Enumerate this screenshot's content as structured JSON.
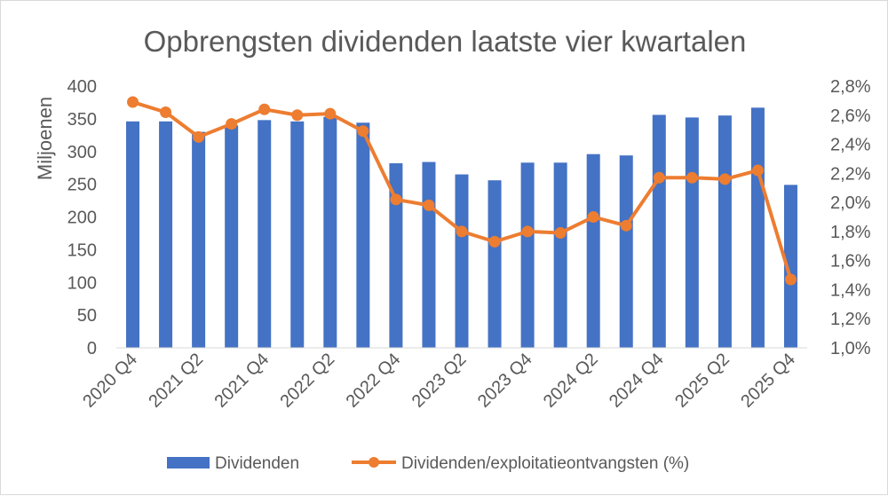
{
  "chart_data": {
    "type": "bar+line",
    "title": "Opbrengsten dividenden laatste vier kwartalen",
    "ylabel_left": "Miljoenen",
    "ylabel_right": "",
    "xlabel": "",
    "ylim_left": [
      0,
      400
    ],
    "ylim_right": [
      1.0,
      2.8
    ],
    "left_ticks": [
      "0",
      "50",
      "100",
      "150",
      "200",
      "250",
      "300",
      "350",
      "400"
    ],
    "right_ticks": [
      "1,0%",
      "1,2%",
      "1,4%",
      "1,6%",
      "1,8%",
      "2,0%",
      "2,2%",
      "2,4%",
      "2,6%",
      "2,8%"
    ],
    "categories": [
      "2020 Q4",
      "2021 Q1",
      "2021 Q2",
      "2021 Q3",
      "2021 Q4",
      "2022 Q1",
      "2022 Q2",
      "2022 Q3",
      "2022 Q4",
      "2023 Q1",
      "2023 Q2",
      "2023 Q3",
      "2023 Q4",
      "2024 Q1",
      "2024 Q2",
      "2024 Q3",
      "2024 Q4",
      "2025 Q1",
      "2025 Q2",
      "2025 Q3",
      "2025 Q4"
    ],
    "x_tick_labels": [
      "2020 Q4",
      "2021 Q2",
      "2021 Q4",
      "2022 Q2",
      "2022 Q4",
      "2023 Q2",
      "2023 Q4",
      "2024 Q2",
      "2024 Q4",
      "2025 Q2",
      "2025 Q4"
    ],
    "series": [
      {
        "name": "Dividenden",
        "type": "bar",
        "axis": "left",
        "color": "#4472C4",
        "values": [
          346,
          346,
          330,
          340,
          348,
          346,
          353,
          344,
          282,
          284,
          265,
          256,
          283,
          283,
          296,
          294,
          356,
          352,
          355,
          367,
          249
        ]
      },
      {
        "name": "Dividenden/exploitatieontvangsten (%)",
        "type": "line",
        "axis": "right",
        "color": "#ED7D31",
        "values": [
          2.69,
          2.62,
          2.45,
          2.54,
          2.64,
          2.6,
          2.61,
          2.49,
          2.02,
          1.98,
          1.8,
          1.73,
          1.8,
          1.79,
          1.9,
          1.84,
          2.17,
          2.17,
          2.16,
          2.22,
          1.47
        ]
      }
    ],
    "legend_position": "bottom",
    "grid": false
  }
}
